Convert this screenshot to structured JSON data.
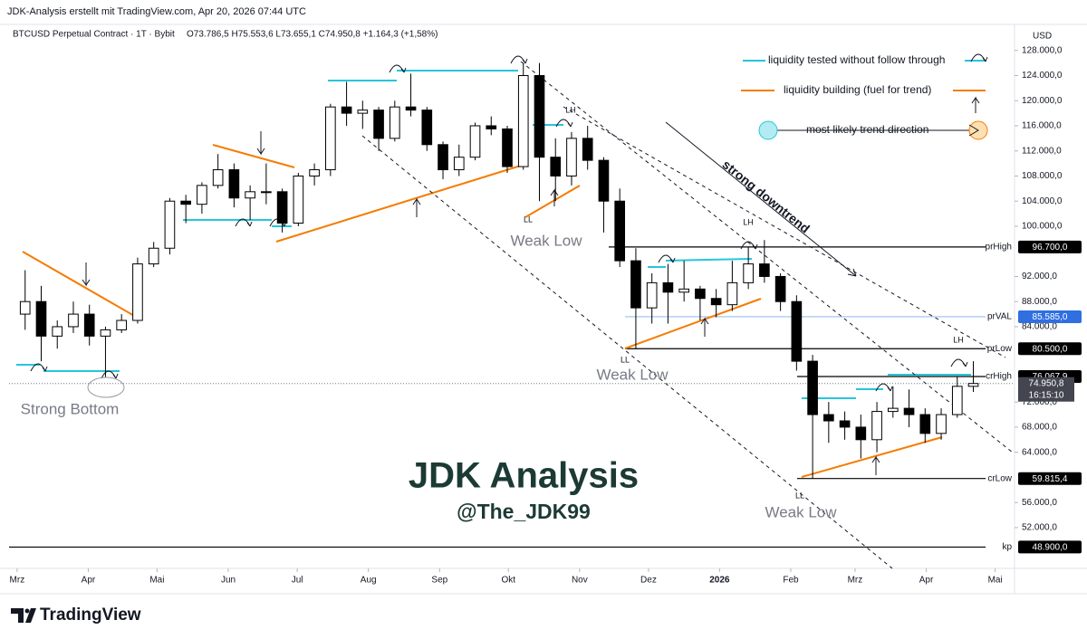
{
  "chart_data": {
    "type": "candlestick",
    "header": "JDK-Analysis erstellt mit TradingView.com, Apr 20, 2026 07:44 UTC",
    "title": "BTCUSD Perpetual Contract · 1T · Bybit",
    "ohlc_text": "O73.786,5  H75.553,6  L73.655,1  C74.950,8  +1.164,3 (+1,58%)",
    "currency": "USD",
    "watermark": "JDK Analysis",
    "handle": "@The_JDK99",
    "brand": "TradingView",
    "open": [
      86000,
      88000,
      82500,
      84000,
      86000,
      82500,
      83500,
      85000,
      94000,
      96500,
      104000,
      103500,
      106500,
      109000,
      104500,
      105500,
      105500,
      100500,
      108000,
      109000,
      119000,
      118000,
      118500,
      114000,
      119000,
      118500,
      113000,
      109000,
      111000,
      116000,
      115500,
      109500,
      124000,
      111000,
      108000,
      114000,
      110500,
      104000,
      94500,
      87000,
      91000,
      89500,
      90000,
      88500,
      87500,
      91000,
      94000,
      92000,
      88000,
      78500,
      70000,
      69000,
      68000,
      66000,
      70500,
      71000,
      70000,
      67000,
      70000,
      74500
    ],
    "high": [
      93000,
      90500,
      85000,
      88000,
      87500,
      84000,
      86000,
      95000,
      97500,
      104500,
      105000,
      107000,
      111500,
      110000,
      106500,
      110000,
      106000,
      108500,
      110000,
      119500,
      123000,
      120000,
      119000,
      120000,
      124300,
      119000,
      113500,
      113000,
      116500,
      117500,
      116000,
      126000,
      126000,
      114000,
      115000,
      116000,
      111000,
      106000,
      96500,
      92500,
      94000,
      94500,
      90500,
      90000,
      94500,
      96700,
      97800,
      92500,
      89000,
      79500,
      72000,
      70500,
      70000,
      72000,
      74500,
      74000,
      71000,
      71000,
      76000,
      78500
    ],
    "low": [
      83500,
      78500,
      80500,
      83000,
      81000,
      76000,
      83000,
      84500,
      93500,
      95500,
      100500,
      102000,
      106000,
      103000,
      101000,
      103500,
      99000,
      100000,
      106500,
      108000,
      116000,
      115500,
      112000,
      113500,
      117500,
      112000,
      107500,
      108000,
      110500,
      114500,
      108500,
      109000,
      104000,
      104000,
      106500,
      109000,
      99000,
      93500,
      80500,
      84500,
      84500,
      88000,
      85000,
      85500,
      86500,
      90000,
      91000,
      86500,
      77000,
      59800,
      65500,
      66000,
      63000,
      64000,
      69500,
      68000,
      65500,
      66000,
      69500,
      73600
    ],
    "close": [
      88000,
      82500,
      84000,
      86000,
      82500,
      83500,
      85000,
      94000,
      96500,
      104000,
      103500,
      106500,
      109000,
      104500,
      105500,
      105500,
      100500,
      108000,
      109000,
      119000,
      118000,
      118500,
      114000,
      119000,
      118500,
      113000,
      109000,
      111000,
      116000,
      115500,
      109500,
      124000,
      111000,
      108000,
      114000,
      110500,
      104000,
      94500,
      87000,
      91000,
      89500,
      90000,
      88500,
      87500,
      91000,
      94000,
      92000,
      88000,
      78500,
      70000,
      69000,
      68000,
      66000,
      70500,
      71000,
      70000,
      67000,
      70000,
      74500,
      74950.8
    ],
    "up_color": "#ffffff",
    "down_color": "#000000",
    "xlim": [
      -1,
      61
    ],
    "xticks": [
      {
        "value": -0.5,
        "label": "Mrz"
      },
      {
        "value": 3.93,
        "label": "Apr"
      },
      {
        "value": 8.21,
        "label": "Mai"
      },
      {
        "value": 12.64,
        "label": "Jun"
      },
      {
        "value": 16.93,
        "label": "Jul"
      },
      {
        "value": 21.36,
        "label": "Aug"
      },
      {
        "value": 25.79,
        "label": "Sep"
      },
      {
        "value": 30.07,
        "label": "Okt"
      },
      {
        "value": 34.5,
        "label": "Nov"
      },
      {
        "value": 38.79,
        "label": "Dez"
      },
      {
        "value": 43.21,
        "label": "2026"
      },
      {
        "value": 47.64,
        "label": "Feb"
      },
      {
        "value": 51.64,
        "label": "Mrz"
      },
      {
        "value": 56.07,
        "label": "Apr"
      },
      {
        "value": 60.36,
        "label": "Mai"
      }
    ],
    "ylim": [
      45500,
      132000
    ],
    "yticks": [
      {
        "value": 128000,
        "label": "128.000,0"
      },
      {
        "value": 124000,
        "label": "124.000,0"
      },
      {
        "value": 120000,
        "label": "120.000,0"
      },
      {
        "value": 116000,
        "label": "116.000,0"
      },
      {
        "value": 112000,
        "label": "112.000,0"
      },
      {
        "value": 108000,
        "label": "108.000,0"
      },
      {
        "value": 104000,
        "label": "104.000,0"
      },
      {
        "value": 100000,
        "label": "100.000,0"
      },
      {
        "value": 92000,
        "label": "92.000,0"
      },
      {
        "value": 88000,
        "label": "88.000,0"
      },
      {
        "value": 84000,
        "label": "84.000,0"
      },
      {
        "value": 72000,
        "label": "72.000,0"
      },
      {
        "value": 68000,
        "label": "68.000,0"
      },
      {
        "value": 64000,
        "label": "64.000,0"
      },
      {
        "value": 56000,
        "label": "56.000,0"
      },
      {
        "value": 52000,
        "label": "52.000,0"
      }
    ],
    "levels": [
      {
        "name": "prHigh",
        "value": 96700,
        "label": "96.700,0",
        "color": "#000000"
      },
      {
        "name": "prVAL",
        "value": 85585,
        "label": "85.585,0",
        "color": "#2f6fe0"
      },
      {
        "name": "prLow",
        "value": 80500,
        "label": "80.500,0",
        "color": "#000000"
      },
      {
        "name": "crHigh",
        "value": 76067.9,
        "label": "76.067,9",
        "color": "#000000"
      },
      {
        "name": "crLow",
        "value": 59815.4,
        "label": "59.815,4",
        "color": "#000000"
      },
      {
        "name": "kp",
        "value": 48900,
        "label": "48.900,0",
        "color": "#000000"
      }
    ],
    "last_price": {
      "value": 74950.8,
      "label": "74.950,8",
      "countdown": "16:15:10"
    },
    "annotations": {
      "weak_low": [
        "Weak Low",
        "Weak Low",
        "Weak Low"
      ],
      "strong_bottom": "Strong Bottom",
      "ll": [
        "LL",
        "LL",
        "LL"
      ],
      "lh": [
        "LH",
        "LH",
        "LH"
      ],
      "downtrend": "strong downtrend"
    },
    "legend": [
      "liquidity tested without follow through",
      "liquidity building (fuel for trend)",
      "most likely trend direction"
    ]
  }
}
